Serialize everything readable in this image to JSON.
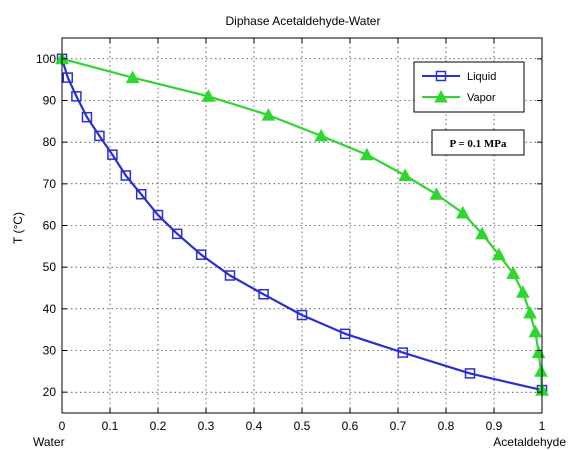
{
  "chart_data": {
    "type": "line",
    "title": "Diphase Acetaldehyde-Water",
    "xlabel": "",
    "ylabel": "T (°C)",
    "x_end_labels": {
      "left": "Water",
      "right": "Acetaldehyde"
    },
    "xlim": [
      0,
      1
    ],
    "ylim": [
      15,
      105
    ],
    "xticks": [
      0,
      0.1,
      0.2,
      0.3,
      0.4,
      0.5,
      0.6,
      0.7,
      0.8,
      0.9,
      1
    ],
    "xtick_labels": [
      "0",
      "0.1",
      "0.2",
      "0.3",
      "0.4",
      "0.5",
      "0.6",
      "0.7",
      "0.8",
      "0.9",
      "1"
    ],
    "yticks": [
      20,
      30,
      40,
      50,
      60,
      70,
      80,
      90,
      100
    ],
    "ytick_labels": [
      "20",
      "30",
      "40",
      "50",
      "60",
      "70",
      "80",
      "90",
      "100"
    ],
    "grid": true,
    "legend_position": "top-right",
    "annotation": "P = 0.1 MPa",
    "series": [
      {
        "name": "Liquid",
        "color": "#2b2fd1",
        "marker": "square",
        "x": [
          0,
          0.012,
          0.03,
          0.052,
          0.078,
          0.105,
          0.133,
          0.165,
          0.2,
          0.24,
          0.29,
          0.35,
          0.42,
          0.5,
          0.59,
          0.71,
          0.85,
          1.0
        ],
        "y": [
          100,
          95.5,
          91,
          86,
          81.5,
          77,
          72,
          67.5,
          62.5,
          58,
          53,
          48,
          43.5,
          38.5,
          34,
          29.5,
          24.5,
          20.5
        ]
      },
      {
        "name": "Vapor",
        "color": "#2fd62f",
        "marker": "triangle",
        "x": [
          0,
          0.147,
          0.305,
          0.43,
          0.54,
          0.635,
          0.715,
          0.78,
          0.835,
          0.875,
          0.91,
          0.94,
          0.96,
          0.975,
          0.986,
          0.993,
          0.998,
          1.0
        ],
        "y": [
          100,
          95.5,
          91,
          86.5,
          81.5,
          77,
          72,
          67.5,
          63,
          58,
          53,
          48.5,
          44,
          39,
          34.5,
          29.5,
          25,
          20.5
        ]
      }
    ]
  }
}
